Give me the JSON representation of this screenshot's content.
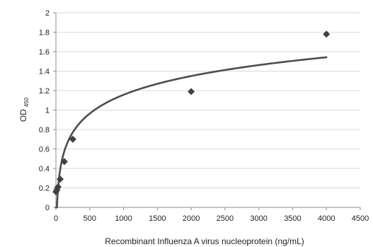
{
  "chart_data": {
    "type": "scatter",
    "title": "",
    "xlabel": "Recombinant Influenza A virus nucleoprotein  (ng/mL)",
    "ylabel": {
      "main": "OD",
      "subscript": "450"
    },
    "xlim": [
      0,
      4500
    ],
    "ylim": [
      0,
      2
    ],
    "xticks": [
      0,
      500,
      1000,
      1500,
      2000,
      2500,
      3000,
      3500,
      4000,
      4500
    ],
    "yticks": [
      0,
      0.2,
      0.4,
      0.6,
      0.8,
      1,
      1.2,
      1.4,
      1.6,
      1.8,
      2
    ],
    "grid": {
      "horizontal": true,
      "vertical": false
    },
    "legend": "none",
    "colors": {
      "marker": "#404040",
      "trendline": "#4d4d4d",
      "grid": "#d9d9d9",
      "axis": "#8c8c8c"
    },
    "series": [
      {
        "marker": "diamond",
        "x": [
          0,
          15.6,
          31.25,
          62.5,
          125,
          250,
          2000,
          4000
        ],
        "y": [
          0.16,
          0.18,
          0.21,
          0.29,
          0.47,
          0.7,
          1.19,
          1.78
        ]
      }
    ],
    "trendline": {
      "type": "logarithmic",
      "x_start": 0.3,
      "x_end": 4000
    }
  }
}
